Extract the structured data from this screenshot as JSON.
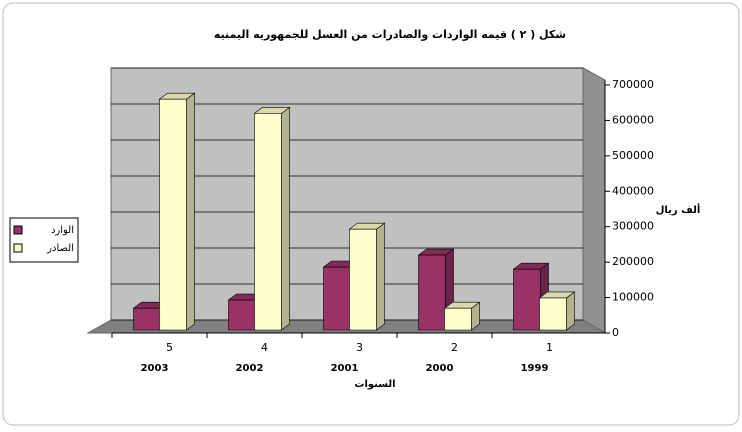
{
  "chart_data": {
    "type": "bar3d",
    "title": "شكل ( ٢ )   قيمه الواردات والصادرات من العسل للجمهوريه اليمنيه",
    "x_label": "السنوات",
    "y_label": "ألف ريال",
    "categories": [
      "5",
      "4",
      "3",
      "2",
      "1"
    ],
    "category_years": [
      "2003",
      "2002",
      "2001",
      "2000",
      "1999"
    ],
    "series": [
      {
        "name": "الوارد",
        "color": "#993366",
        "values": [
          70000,
          93000,
          186000,
          220000,
          180000
        ]
      },
      {
        "name": "الصادر",
        "color": "#ffffcc",
        "values": [
          660000,
          620000,
          293000,
          70000,
          99000
        ]
      }
    ],
    "ylim": [
      0,
      700000
    ],
    "yticks": [
      0,
      100000,
      200000,
      300000,
      400000,
      500000,
      600000,
      700000
    ],
    "grid": true
  }
}
